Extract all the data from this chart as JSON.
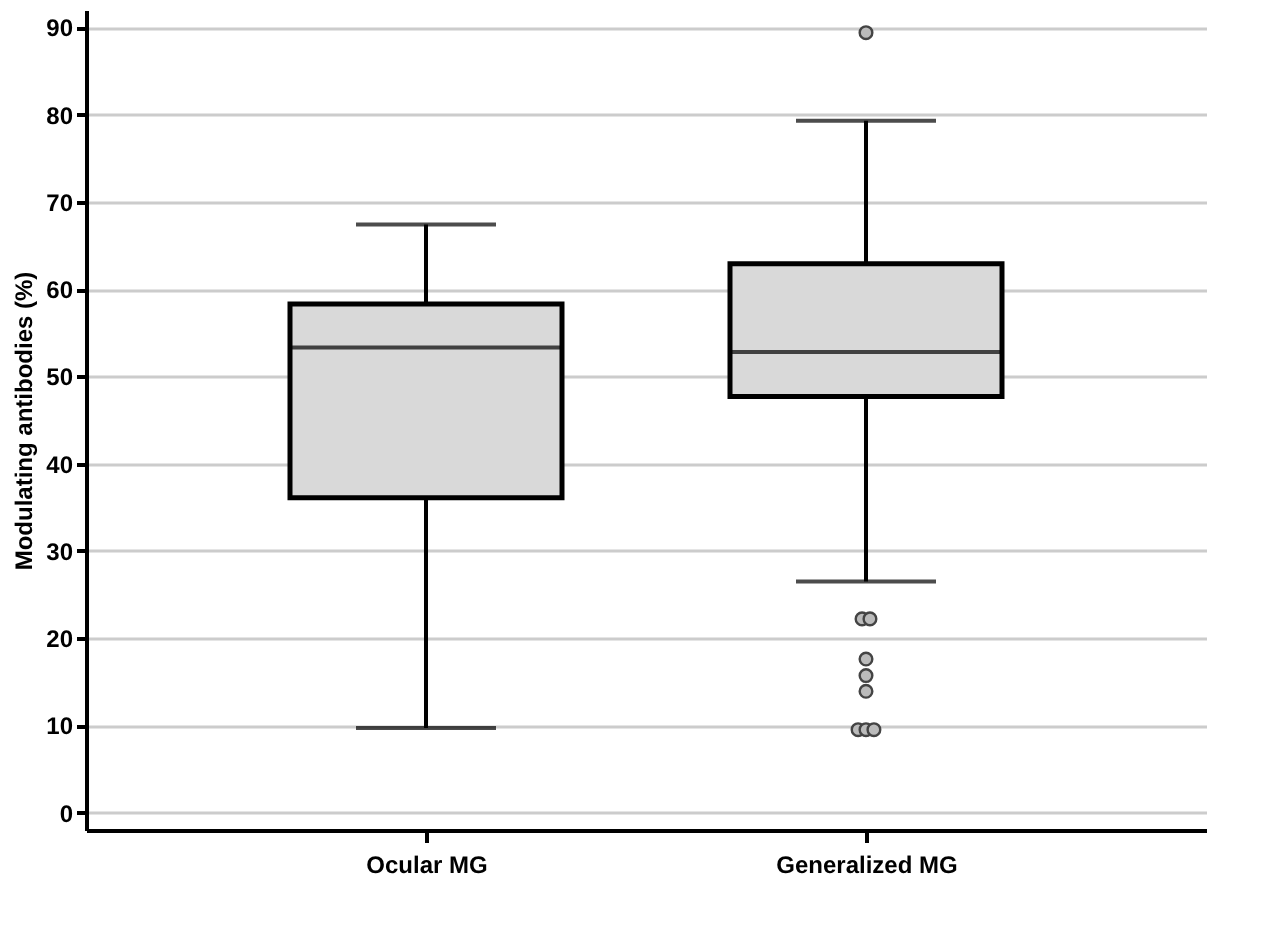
{
  "chart_data": {
    "type": "box",
    "ylabel": "Modulating antibodies (%)",
    "categories": [
      "Ocular MG",
      "Generalized MG"
    ],
    "boxes": [
      {
        "low": 9.7,
        "q1": 36.1,
        "median": 53.3,
        "q3": 58.3,
        "high": 67.4
      },
      {
        "low": 26.5,
        "q1": 47.7,
        "median": 52.8,
        "q3": 62.9,
        "high": 79.3,
        "outliers": [
          89.4,
          22.2,
          22.2,
          17.6,
          15.7,
          13.9,
          9.5,
          9.5,
          9.5
        ]
      }
    ],
    "color": "#d9d9d9",
    "ylim": [
      -2,
      92
    ],
    "yticks": [
      0,
      10,
      20,
      30,
      40,
      50,
      60,
      70,
      80,
      90
    ],
    "grid": "y"
  }
}
